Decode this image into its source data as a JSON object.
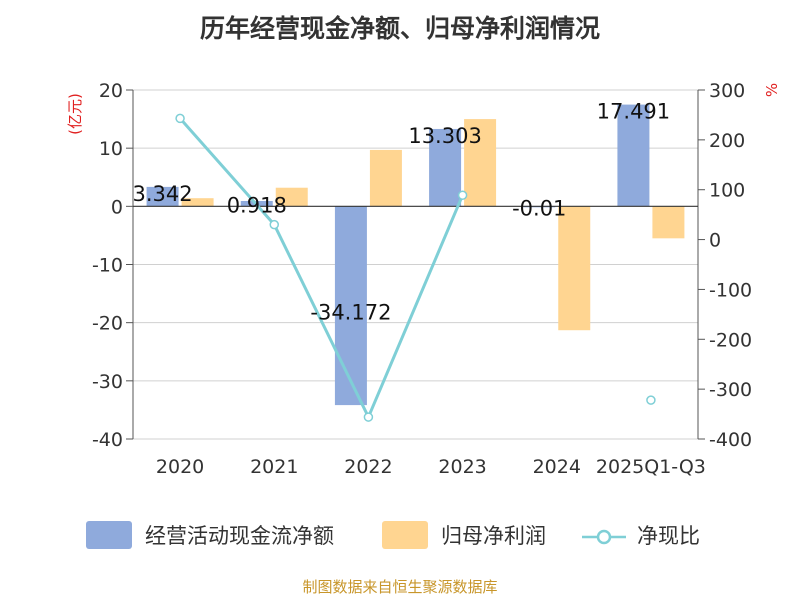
{
  "chart_data": {
    "type": "bar+line",
    "title": "历年经营现金净额、归母净利润情况",
    "categories": [
      "2020",
      "2021",
      "2022",
      "2023",
      "2024",
      "2025Q1-Q3"
    ],
    "series": [
      {
        "name": "经营活动现金流净额",
        "type": "bar",
        "axis": "left",
        "color": "#8faadc",
        "values": [
          3.342,
          0.918,
          -34.172,
          13.303,
          -0.01,
          17.491
        ],
        "labels": [
          "3.342",
          "0.918",
          "-34.172",
          "13.303",
          "-0.01",
          "17.491"
        ]
      },
      {
        "name": "归母净利润",
        "type": "bar",
        "axis": "left",
        "color": "#ffd591",
        "values": [
          1.4,
          3.2,
          9.7,
          15.0,
          -21.3,
          -5.5
        ]
      },
      {
        "name": "净现比",
        "type": "line",
        "axis": "right",
        "color": "#7fcfd6",
        "values": [
          243,
          30,
          -356,
          89,
          null,
          -322
        ]
      }
    ],
    "y_left": {
      "label": "(亿元)",
      "label_color": "#e02020",
      "min": -40,
      "max": 20,
      "ticks": [
        20,
        10,
        0,
        -10,
        -20,
        -30,
        -40
      ]
    },
    "y_right": {
      "label": "%",
      "label_color": "#e02020",
      "min": -400,
      "max": 300,
      "ticks": [
        300,
        200,
        100,
        0,
        -100,
        -200,
        -300,
        -400
      ]
    },
    "grid": true,
    "legend_position": "bottom"
  },
  "source_text": "制图数据来自恒生聚源数据库",
  "source_color": "#c8962a"
}
